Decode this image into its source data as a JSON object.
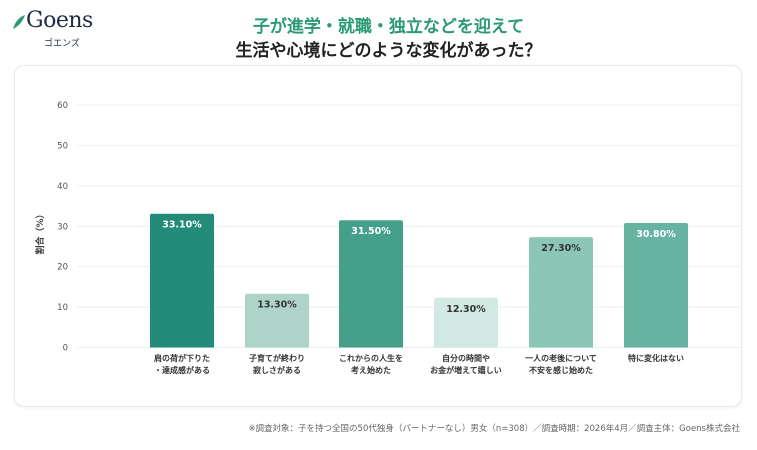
{
  "logo": {
    "word": "Goens",
    "kana": "ゴエンズ",
    "accent": "#2a9a74"
  },
  "title": {
    "line1": "子が進学・就職・独立などを迎えて",
    "line2": "生活や心境にどのような変化があった？"
  },
  "chart_data": {
    "type": "bar",
    "ylabel": "割合（%）",
    "ylim": [
      0,
      60
    ],
    "yticks": [
      0,
      10,
      20,
      30,
      40,
      50,
      60
    ],
    "grid": true,
    "categories": [
      [
        "肩の荷が下りた",
        "・達成感がある"
      ],
      [
        "子育てが終わり",
        "寂しさがある"
      ],
      [
        "これからの人生を",
        "考え始めた"
      ],
      [
        "自分の時間や",
        "お金が増えて嬉しい"
      ],
      [
        "一人の老後について",
        "不安を感じ始めた"
      ],
      [
        "特に変化はない"
      ]
    ],
    "values": [
      33.1,
      13.3,
      31.5,
      12.3,
      27.3,
      30.8
    ],
    "data_labels": [
      "33.10%",
      "13.30%",
      "31.50%",
      "12.30%",
      "27.30%",
      "30.80%"
    ],
    "colors": [
      "#238c78",
      "#aed4ca",
      "#45a08b",
      "#d2e8e2",
      "#8cc6b6",
      "#66b3a2"
    ],
    "label_colors": [
      "#ffffff",
      "#333333",
      "#ffffff",
      "#333333",
      "#333333",
      "#ffffff"
    ]
  },
  "footnote": "※調査対象：子を持つ全国の50代独身（パートナーなし）男女（n=308）／調査時期：2026年4月／調査主体：Goens株式会社"
}
